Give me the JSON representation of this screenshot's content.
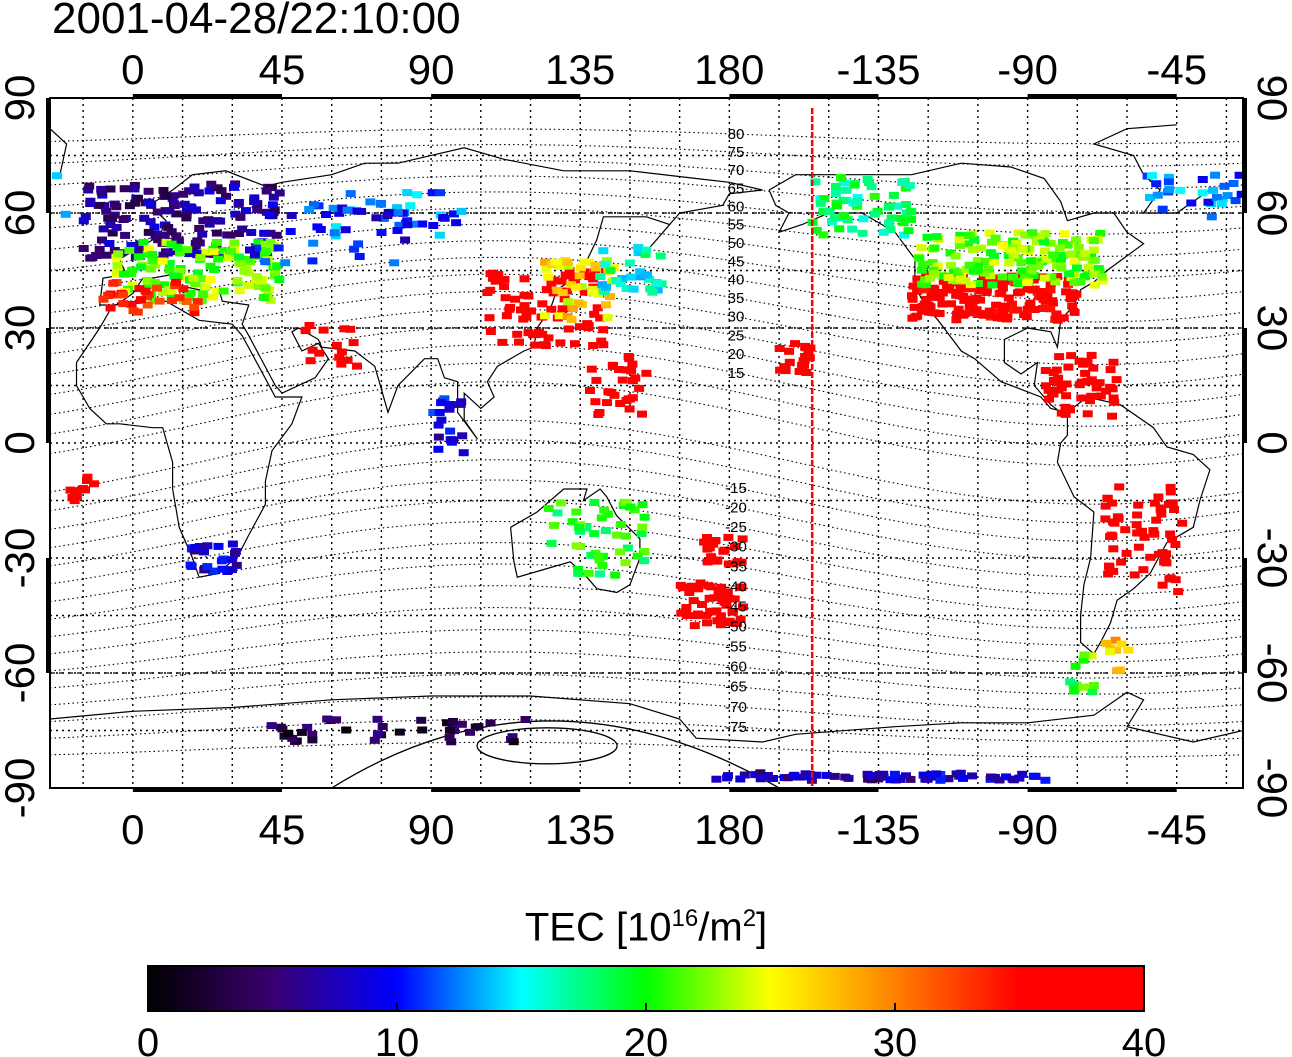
{
  "title": "2001-04-28/22:10:00",
  "top_axis_labels": [
    "0",
    "45",
    "90",
    "135",
    "180",
    "-135",
    "-90",
    "-45"
  ],
  "bottom_axis_labels": [
    "0",
    "45",
    "90",
    "135",
    "180",
    "-135",
    "-90",
    "-45"
  ],
  "left_axis_labels": [
    "90",
    "60",
    "30",
    "0",
    "-30",
    "-60",
    "-90"
  ],
  "right_axis_labels": [
    "90",
    "60",
    "30",
    "0",
    "-30",
    "-60",
    "-90"
  ],
  "contour_labels": [
    "80",
    "75",
    "70",
    "65",
    "60",
    "55",
    "50",
    "45",
    "40",
    "35",
    "30",
    "25",
    "20",
    "15",
    "-15",
    "-20",
    "-25",
    "-30",
    "-35",
    "-40",
    "-45",
    "-50",
    "-55",
    "-60",
    "-65",
    "-70",
    "-75"
  ],
  "colorbar": {
    "label_main": "TEC  [10",
    "label_sup1": "16",
    "label_mid": "/m",
    "label_sup2": "2",
    "label_end": "]",
    "ticks": [
      "0",
      "10",
      "20",
      "30",
      "40"
    ],
    "min": 0,
    "max": 40,
    "stops": [
      "#000000",
      "#3a0070",
      "#0000ff",
      "#00ffff",
      "#00ff00",
      "#ffff00",
      "#ff8000",
      "#ff0000",
      "#ff0000"
    ]
  },
  "terminator_longitude": -155,
  "map": {
    "lon_range": [
      -25,
      335
    ],
    "lat_range": [
      -90,
      90
    ],
    "gridline_lon_step": 15,
    "gridline_lat_step": 15
  }
}
